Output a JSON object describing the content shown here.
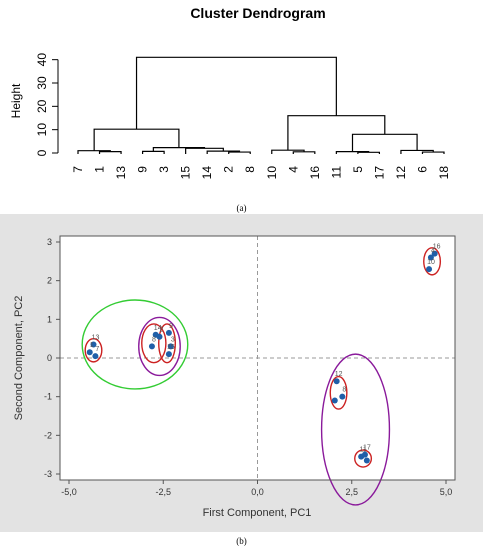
{
  "figure": {
    "caption_a": "(a)",
    "caption_b": "(b)"
  },
  "chart_data": [
    {
      "type": "dendrogram",
      "title": "Cluster Dendrogram",
      "ylabel": "Height",
      "ylim": [
        0,
        45
      ],
      "yticks": [
        0,
        10,
        20,
        30,
        40
      ],
      "leaves": [
        "7",
        "1",
        "13",
        "9",
        "3",
        "15",
        "14",
        "2",
        "8",
        "10",
        "4",
        "16",
        "11",
        "5",
        "17",
        "12",
        "6",
        "18"
      ],
      "merges": [
        {
          "a": "L:1",
          "b": "L:2",
          "h": 0.6
        },
        {
          "a": "L:0",
          "b": "M:0",
          "h": 1.0
        },
        {
          "a": "L:3",
          "b": "L:4",
          "h": 0.7
        },
        {
          "a": "L:7",
          "b": "L:8",
          "h": 0.4
        },
        {
          "a": "L:6",
          "b": "M:3",
          "h": 0.8
        },
        {
          "a": "L:5",
          "b": "M:4",
          "h": 2.0
        },
        {
          "a": "M:2",
          "b": "M:5",
          "h": 2.3
        },
        {
          "a": "M:1",
          "b": "M:6",
          "h": 10.2
        },
        {
          "a": "L:10",
          "b": "L:11",
          "h": 0.5
        },
        {
          "a": "L:9",
          "b": "M:8",
          "h": 1.2
        },
        {
          "a": "L:13",
          "b": "L:14",
          "h": 0.3
        },
        {
          "a": "L:12",
          "b": "M:10",
          "h": 0.6
        },
        {
          "a": "L:16",
          "b": "L:17",
          "h": 0.4
        },
        {
          "a": "L:15",
          "b": "M:12",
          "h": 1.1
        },
        {
          "a": "M:11",
          "b": "M:13",
          "h": 8.0
        },
        {
          "a": "M:9",
          "b": "M:14",
          "h": 16.0
        },
        {
          "a": "M:7",
          "b": "M:15",
          "h": 41.0
        }
      ]
    },
    {
      "type": "scatter",
      "xlabel": "First Component, PC1",
      "ylabel": "Second Component, PC2",
      "xlim": [
        -5.0,
        5.0
      ],
      "ylim": [
        -3.0,
        3.0
      ],
      "xticks": [
        "-5,0",
        "-2,5",
        "0,0",
        "2,5",
        "5,0"
      ],
      "yticks": [
        "-3",
        "-2",
        "-1",
        "0",
        "1",
        "2",
        "3"
      ],
      "reference_lines": {
        "x": 0,
        "y": 0
      },
      "point_color": "#1f5fa8",
      "points": [
        {
          "label": "1",
          "x": -4.45,
          "y": 0.15
        },
        {
          "label": "13",
          "x": -4.35,
          "y": 0.35
        },
        {
          "label": "7",
          "x": -4.3,
          "y": 0.05
        },
        {
          "label": "14",
          "x": -2.7,
          "y": 0.6
        },
        {
          "label": "9",
          "x": -2.35,
          "y": 0.65
        },
        {
          "label": "8",
          "x": -2.8,
          "y": 0.3
        },
        {
          "label": "2",
          "x": -2.6,
          "y": 0.55
        },
        {
          "label": "3",
          "x": -2.3,
          "y": 0.3
        },
        {
          "label": "15",
          "x": -2.35,
          "y": 0.1
        },
        {
          "label": "16",
          "x": 4.7,
          "y": 2.7
        },
        {
          "label": "4",
          "x": 4.6,
          "y": 2.6
        },
        {
          "label": "10",
          "x": 4.55,
          "y": 2.3
        },
        {
          "label": "12",
          "x": 2.1,
          "y": -0.6
        },
        {
          "label": "",
          "x": 2.05,
          "y": -1.1
        },
        {
          "label": "8",
          "x": 2.25,
          "y": -1.0
        },
        {
          "label": "11",
          "x": 2.75,
          "y": -2.55
        },
        {
          "label": "17",
          "x": 2.85,
          "y": -2.5
        },
        {
          "label": "",
          "x": 2.9,
          "y": -2.65
        }
      ],
      "ellipses": [
        {
          "cx": -3.25,
          "cy": 0.35,
          "rx": 1.4,
          "ry": 1.15,
          "color": "#33cc33"
        },
        {
          "cx": -4.35,
          "cy": 0.2,
          "rx": 0.22,
          "ry": 0.3,
          "color": "#cc2222"
        },
        {
          "cx": -2.75,
          "cy": 0.38,
          "rx": 0.32,
          "ry": 0.5,
          "color": "#cc2222"
        },
        {
          "cx": -2.4,
          "cy": 0.38,
          "rx": 0.22,
          "ry": 0.5,
          "color": "#cc2222"
        },
        {
          "cx": -2.6,
          "cy": 0.3,
          "rx": 0.55,
          "ry": 0.75,
          "color": "#8a1a9b"
        },
        {
          "cx": 4.63,
          "cy": 2.5,
          "rx": 0.22,
          "ry": 0.35,
          "color": "#cc2222"
        },
        {
          "cx": 2.15,
          "cy": -0.9,
          "rx": 0.22,
          "ry": 0.42,
          "color": "#cc2222"
        },
        {
          "cx": 2.8,
          "cy": -2.6,
          "rx": 0.22,
          "ry": 0.22,
          "color": "#cc2222"
        },
        {
          "cx": 2.6,
          "cy": -1.85,
          "rx": 0.9,
          "ry": 1.95,
          "color": "#8a1a9b"
        }
      ]
    }
  ]
}
